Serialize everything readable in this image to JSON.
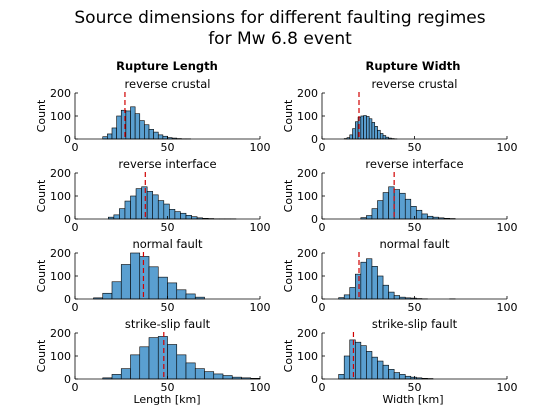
{
  "figure": {
    "title_line1": "Source dimensions for different faulting regimes",
    "title_line2": "for Mw 6.8 event",
    "left_column_header": "Rupture Length",
    "right_column_header": "Rupture Width",
    "left_xlabel": "Length [km]",
    "right_xlabel": "Width [km]",
    "ylabel": "Count"
  },
  "colors": {
    "bar_fill": "#5a9fd0",
    "bar_edge": "#000000",
    "median_line": "#d00000"
  },
  "chart_data": [
    {
      "type": "bar",
      "title": "reverse crustal",
      "xlabel": "",
      "ylabel": "Count",
      "xlim": [
        0,
        100
      ],
      "ylim": [
        0,
        200
      ],
      "xticks": [
        0,
        50,
        100
      ],
      "yticks": [
        0,
        100,
        200
      ],
      "bin_width": 2.5,
      "bin_start": 15,
      "values": [
        10,
        22,
        48,
        100,
        125,
        122,
        140,
        110,
        80,
        62,
        42,
        30,
        18,
        12,
        6,
        4,
        2,
        1,
        1
      ],
      "median": 27
    },
    {
      "type": "bar",
      "title": "reverse crustal",
      "xlabel": "",
      "ylabel": "Count",
      "xlim": [
        0,
        100
      ],
      "ylim": [
        0,
        200
      ],
      "xticks": [
        0,
        50,
        100
      ],
      "yticks": [
        0,
        100,
        200
      ],
      "bin_width": 1.5,
      "bin_start": 12,
      "values": [
        2,
        6,
        18,
        45,
        75,
        95,
        100,
        102,
        98,
        88,
        72,
        55,
        38,
        24,
        15,
        8,
        4,
        2,
        1
      ],
      "median": 20
    },
    {
      "type": "bar",
      "title": "reverse interface",
      "xlabel": "",
      "ylabel": "Count",
      "xlim": [
        0,
        100
      ],
      "ylim": [
        0,
        200
      ],
      "xticks": [
        0,
        50,
        100
      ],
      "yticks": [
        0,
        100,
        200
      ],
      "bin_width": 3,
      "bin_start": 18,
      "values": [
        8,
        18,
        45,
        78,
        100,
        132,
        140,
        120,
        105,
        80,
        65,
        42,
        32,
        25,
        16,
        10,
        5,
        3,
        2,
        1,
        1,
        1,
        1
      ],
      "median": 38
    },
    {
      "type": "bar",
      "title": "reverse interface",
      "xlabel": "",
      "ylabel": "Count",
      "xlim": [
        0,
        100
      ],
      "ylim": [
        0,
        200
      ],
      "xticks": [
        0,
        50,
        100
      ],
      "yticks": [
        0,
        100,
        200
      ],
      "bin_width": 3,
      "bin_start": 21,
      "values": [
        6,
        15,
        45,
        80,
        115,
        140,
        128,
        112,
        86,
        55,
        38,
        22,
        12,
        8,
        5,
        3,
        2
      ],
      "median": 39
    },
    {
      "type": "bar",
      "title": "normal fault",
      "xlabel": "",
      "ylabel": "Count",
      "xlim": [
        0,
        100
      ],
      "ylim": [
        0,
        200
      ],
      "xticks": [
        0,
        50,
        100
      ],
      "yticks": [
        0,
        100,
        200
      ],
      "bin_width": 5,
      "bin_start": 10,
      "values": [
        5,
        25,
        75,
        150,
        200,
        185,
        140,
        95,
        70,
        40,
        22,
        8
      ],
      "median": 37
    },
    {
      "type": "bar",
      "title": "normal fault",
      "xlabel": "",
      "ylabel": "Count",
      "xlim": [
        0,
        100
      ],
      "ylim": [
        0,
        200
      ],
      "xticks": [
        0,
        50,
        100
      ],
      "yticks": [
        0,
        100,
        200
      ],
      "bin_width": 3,
      "bin_start": 9,
      "values": [
        6,
        18,
        50,
        108,
        160,
        175,
        142,
        100,
        60,
        30,
        15,
        8,
        5,
        4,
        2,
        1,
        0,
        0,
        0,
        0,
        1
      ],
      "median": 20
    },
    {
      "type": "bar",
      "title": "strike-slip fault",
      "xlabel": "Length [km]",
      "ylabel": "Count",
      "xlim": [
        0,
        100
      ],
      "ylim": [
        0,
        200
      ],
      "xticks": [
        0,
        50,
        100
      ],
      "yticks": [
        0,
        100,
        200
      ],
      "bin_width": 5,
      "bin_start": 15,
      "values": [
        5,
        20,
        45,
        105,
        140,
        180,
        185,
        150,
        105,
        70,
        45,
        32,
        22,
        15,
        8,
        5,
        3
      ],
      "median": 48
    },
    {
      "type": "bar",
      "title": "strike-slip fault",
      "xlabel": "Width [km]",
      "ylabel": "Count",
      "xlim": [
        0,
        100
      ],
      "ylim": [
        0,
        200
      ],
      "xticks": [
        0,
        50,
        100
      ],
      "yticks": [
        0,
        100,
        200
      ],
      "bin_width": 3,
      "bin_start": 9,
      "values": [
        20,
        100,
        170,
        160,
        145,
        120,
        95,
        78,
        60,
        42,
        28,
        20,
        12,
        8,
        5,
        3,
        2
      ],
      "median": 17
    }
  ]
}
